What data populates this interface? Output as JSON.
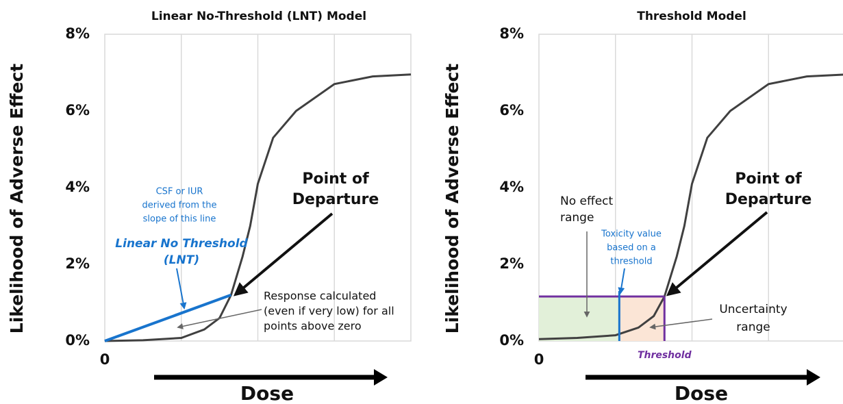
{
  "chart_data": [
    {
      "type": "line",
      "title": "Linear No-Threshold (LNT) Model",
      "ylabel": "Likelihood of Adverse Effect",
      "xlabel": "Dose",
      "xlim": [
        0,
        4
      ],
      "xticks": [
        0
      ],
      "xgrid": [
        1,
        2,
        3
      ],
      "ylim": [
        0,
        8
      ],
      "yticks": [
        {
          "value": 0,
          "label": "0%"
        },
        {
          "value": 2,
          "label": "2%"
        },
        {
          "value": 4,
          "label": "4%"
        },
        {
          "value": 6,
          "label": "6%"
        },
        {
          "value": 8,
          "label": "8%"
        }
      ],
      "series": [
        {
          "name": "Dose-response curve",
          "color": "#404040",
          "x": [
            0,
            0.5,
            1,
            1.3,
            1.5,
            1.65,
            1.8,
            1.9,
            2,
            2.2,
            2.5,
            3,
            3.5,
            4
          ],
          "values": [
            0,
            0.02,
            0.08,
            0.3,
            0.6,
            1.2,
            2.2,
            3.0,
            4.1,
            5.3,
            6.0,
            6.7,
            6.9,
            6.95
          ]
        },
        {
          "name": "Linear No Threshold (LNT)",
          "color": "#1874cd",
          "x": [
            0,
            1.65
          ],
          "values": [
            0,
            1.2
          ]
        }
      ],
      "annotations": {
        "slope_note": [
          "CSF or IUR",
          "derived from the",
          "slope of this line"
        ],
        "lnt_label": [
          "Linear No Threshold",
          "(LNT)"
        ],
        "pod": [
          "Point of",
          "Departure"
        ],
        "response_note": [
          "Response calculated",
          "(even if very low) for all",
          "points above zero"
        ]
      }
    },
    {
      "type": "threshold",
      "title": "Threshold Model",
      "ylabel": "Likelihood of Adverse Effect",
      "xlabel": "Dose",
      "xlim": [
        0,
        4
      ],
      "xticks": [
        0
      ],
      "xgrid": [
        1,
        2,
        3
      ],
      "ylim": [
        0,
        8
      ],
      "yticks": [
        {
          "value": 0,
          "label": "0%"
        },
        {
          "value": 2,
          "label": "2%"
        },
        {
          "value": 4,
          "label": "4%"
        },
        {
          "value": 6,
          "label": "6%"
        },
        {
          "value": 8,
          "label": "8%"
        }
      ],
      "series": [
        {
          "name": "Dose-response curve",
          "color": "#404040",
          "x": [
            0,
            0.5,
            1,
            1.3,
            1.5,
            1.64,
            1.8,
            1.9,
            2,
            2.2,
            2.5,
            3,
            3.5,
            4
          ],
          "values": [
            0.05,
            0.08,
            0.15,
            0.35,
            0.65,
            1.16,
            2.2,
            3.0,
            4.1,
            5.3,
            6.0,
            6.7,
            6.9,
            6.95
          ]
        }
      ],
      "toxicity_value": 1.05,
      "threshold": 1.64,
      "threshold_response": 1.16,
      "toxicity_color": "#1874cd",
      "threshold_color": "#7030a0",
      "no_effect_color": "#e2f0d9",
      "uncertainty_color": "#fbe5d6",
      "annotations": {
        "no_effect": [
          "No effect",
          "range"
        ],
        "toxicity_note": [
          "Toxicity value",
          "based on a",
          "threshold"
        ],
        "pod": [
          "Point of",
          "Departure"
        ],
        "uncertainty": [
          "Uncertainty",
          "range"
        ],
        "threshold_label": "Threshold"
      }
    }
  ]
}
